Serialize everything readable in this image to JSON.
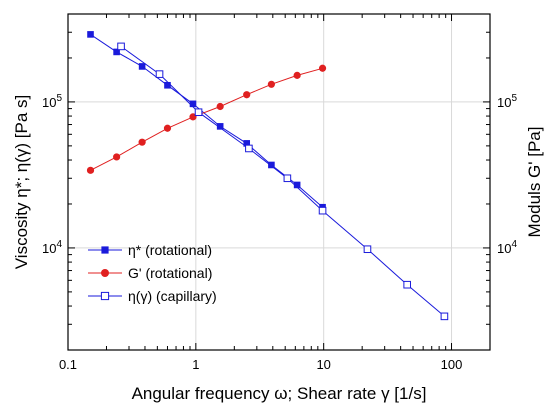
{
  "chart_data": {
    "type": "scatter",
    "title": "",
    "xlabel": "Angular frequency ω; Shear rate γ [1/s]",
    "ylabel_left": "Viscosity η*; η(γ) [Pa s]",
    "ylabel_right": "Moduls G' [Pa]",
    "xscale": "log",
    "yscale_left": "log",
    "yscale_right": "log",
    "xlim": [
      0.1,
      200
    ],
    "ylim_left": [
      2000,
      400000
    ],
    "ylim_right": [
      2000,
      400000
    ],
    "grid": true,
    "legend_position": "bottom-left",
    "x_tick_labels": [
      {
        "value": 0.1,
        "label": "0.1"
      },
      {
        "value": 1,
        "label": "1"
      },
      {
        "value": 10,
        "label": "10"
      },
      {
        "value": 100,
        "label": "100"
      }
    ],
    "y_tick_labels_left": [
      {
        "value": 10000,
        "base": "10",
        "exp": "4"
      },
      {
        "value": 100000,
        "base": "10",
        "exp": "5"
      }
    ],
    "y_tick_labels_right": [
      {
        "value": 10000,
        "base": "10",
        "exp": "4"
      },
      {
        "value": 100000,
        "base": "10",
        "exp": "5"
      }
    ],
    "series": [
      {
        "name": "η* (rotational)",
        "axis": "left",
        "marker": "square-filled",
        "color": "#1a1adb",
        "x": [
          0.15,
          0.24,
          0.38,
          0.6,
          0.95,
          1.55,
          2.5,
          3.9,
          6.2,
          9.8
        ],
        "y": [
          290000,
          220000,
          175000,
          130000,
          97000,
          68000,
          52000,
          37000,
          27000,
          19000
        ]
      },
      {
        "name": "G' (rotational)",
        "axis": "right",
        "marker": "circle-filled",
        "color": "#e02020",
        "x": [
          0.15,
          0.24,
          0.38,
          0.6,
          0.95,
          1.55,
          2.5,
          3.9,
          6.2,
          9.8
        ],
        "y": [
          34000,
          42000,
          53000,
          66000,
          79000,
          93000,
          112000,
          132000,
          152000,
          170000
        ]
      },
      {
        "name": "η(γ) (capillary)",
        "axis": "left",
        "marker": "square-open",
        "color": "#1a1adb",
        "x": [
          0.26,
          0.52,
          1.05,
          2.6,
          5.2,
          9.8,
          22,
          45,
          88
        ],
        "y": [
          240000,
          155000,
          85000,
          48000,
          30000,
          18000,
          9800,
          5600,
          3400
        ]
      }
    ]
  }
}
